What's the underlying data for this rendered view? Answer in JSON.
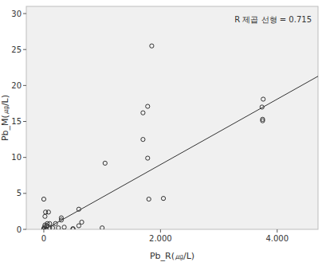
{
  "chart_data": {
    "type": "scatter",
    "x_label": "Pb_R(㎍/L)",
    "y_label": "Pb_M(㎍/L)",
    "annotation": "R 제곱 선형 = 0.715",
    "x": [
      0,
      0,
      10,
      20,
      30,
      50,
      60,
      80,
      100,
      100,
      150,
      200,
      250,
      300,
      300,
      350,
      500,
      500,
      600,
      600,
      650,
      1050,
      1000,
      1700,
      1700,
      1780,
      1780,
      1800,
      1850,
      2050,
      3760,
      3740,
      3750,
      3750,
      0,
      20,
      40
    ],
    "values": [
      0,
      4.2,
      0.3,
      1.8,
      2.4,
      0.5,
      0.8,
      2.4,
      0.8,
      0.2,
      0.2,
      0.8,
      0.2,
      1.3,
      1.6,
      0.3,
      0,
      0.1,
      0.5,
      2.8,
      1.0,
      9.2,
      0.2,
      12.5,
      16.2,
      17.1,
      9.9,
      4.2,
      25.5,
      4.3,
      18.1,
      17.0,
      15.3,
      15.1,
      0.1,
      0.6,
      0
    ],
    "fit": {
      "slope": 0.00455,
      "intercept": -0.1
    },
    "marker": "circle",
    "color": "#333333",
    "xlim": [
      -300,
      4700
    ],
    "ylim": [
      0,
      31
    ],
    "xticks": [
      0,
      {
        "value": 2000,
        "label": "2.000"
      },
      {
        "value": 4000,
        "label": "4.000"
      }
    ],
    "yticks": [
      0,
      5,
      10,
      15,
      20,
      25,
      30
    ]
  }
}
